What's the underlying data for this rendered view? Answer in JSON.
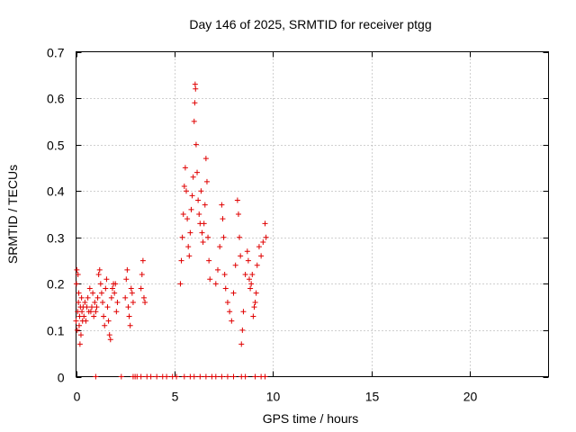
{
  "chart_data": {
    "type": "scatter",
    "title": "Day 146 of 2025, SRMTID for receiver ptgg",
    "xlabel": "GPS time / hours",
    "ylabel": "SRMTID / TECUs",
    "xlim": [
      0,
      24
    ],
    "ylim": [
      0,
      0.7
    ],
    "xticks": [
      0,
      5,
      10,
      15,
      20
    ],
    "xtick_labels": [
      "0",
      "5",
      "10",
      "15",
      "20"
    ],
    "yticks": [
      0,
      0.1,
      0.2,
      0.3,
      0.4,
      0.5,
      0.6,
      0.7
    ],
    "ytick_labels": [
      "0",
      "0.1",
      "0.2",
      "0.3",
      "0.4",
      "0.5",
      "0.6",
      "0.7"
    ],
    "grid": true,
    "marker": "+",
    "marker_color": "#e00000",
    "series": [
      {
        "name": "SRMTID",
        "points": [
          [
            0.0,
            0.12
          ],
          [
            0.02,
            0.2
          ],
          [
            0.04,
            0.23
          ],
          [
            0.06,
            0.1
          ],
          [
            0.08,
            0.14
          ],
          [
            0.1,
            0.22
          ],
          [
            0.12,
            0.16
          ],
          [
            0.14,
            0.18
          ],
          [
            0.16,
            0.11
          ],
          [
            0.18,
            0.13
          ],
          [
            0.2,
            0.07
          ],
          [
            0.22,
            0.15
          ],
          [
            0.25,
            0.09
          ],
          [
            0.28,
            0.17
          ],
          [
            0.3,
            0.14
          ],
          [
            0.33,
            0.12
          ],
          [
            0.36,
            0.15
          ],
          [
            0.4,
            0.13
          ],
          [
            0.45,
            0.16
          ],
          [
            0.5,
            0.12
          ],
          [
            0.55,
            0.15
          ],
          [
            0.6,
            0.17
          ],
          [
            0.65,
            0.14
          ],
          [
            0.7,
            0.19
          ],
          [
            0.75,
            0.14
          ],
          [
            0.8,
            0.15
          ],
          [
            0.85,
            0.18
          ],
          [
            0.9,
            0.13
          ],
          [
            0.95,
            0.16
          ],
          [
            1.0,
            0.14
          ],
          [
            1.05,
            0.15
          ],
          [
            1.1,
            0.17
          ],
          [
            1.15,
            0.22
          ],
          [
            1.2,
            0.23
          ],
          [
            1.25,
            0.2
          ],
          [
            1.3,
            0.18
          ],
          [
            1.35,
            0.16
          ],
          [
            1.4,
            0.13
          ],
          [
            1.45,
            0.11
          ],
          [
            1.5,
            0.19
          ],
          [
            1.55,
            0.21
          ],
          [
            1.6,
            0.15
          ],
          [
            1.65,
            0.12
          ],
          [
            1.7,
            0.09
          ],
          [
            1.75,
            0.08
          ],
          [
            1.8,
            0.17
          ],
          [
            1.85,
            0.19
          ],
          [
            1.9,
            0.2
          ],
          [
            1.95,
            0.18
          ],
          [
            2.0,
            0.2
          ],
          [
            2.05,
            0.14
          ],
          [
            2.1,
            0.16
          ],
          [
            2.5,
            0.17
          ],
          [
            2.55,
            0.21
          ],
          [
            2.6,
            0.23
          ],
          [
            2.65,
            0.15
          ],
          [
            2.7,
            0.13
          ],
          [
            2.75,
            0.11
          ],
          [
            2.8,
            0.19
          ],
          [
            2.85,
            0.18
          ],
          [
            2.9,
            0.16
          ],
          [
            3.3,
            0.19
          ],
          [
            3.35,
            0.22
          ],
          [
            3.4,
            0.25
          ],
          [
            3.45,
            0.17
          ],
          [
            3.5,
            0.16
          ],
          [
            5.3,
            0.2
          ],
          [
            5.35,
            0.25
          ],
          [
            5.4,
            0.3
          ],
          [
            5.45,
            0.35
          ],
          [
            5.5,
            0.41
          ],
          [
            5.55,
            0.45
          ],
          [
            5.6,
            0.4
          ],
          [
            5.65,
            0.34
          ],
          [
            5.7,
            0.28
          ],
          [
            5.75,
            0.26
          ],
          [
            5.8,
            0.31
          ],
          [
            5.85,
            0.36
          ],
          [
            5.9,
            0.39
          ],
          [
            5.95,
            0.43
          ],
          [
            6.0,
            0.55
          ],
          [
            6.03,
            0.59
          ],
          [
            6.05,
            0.63
          ],
          [
            6.07,
            0.62
          ],
          [
            6.1,
            0.5
          ],
          [
            6.15,
            0.44
          ],
          [
            6.2,
            0.38
          ],
          [
            6.25,
            0.35
          ],
          [
            6.3,
            0.33
          ],
          [
            6.35,
            0.4
          ],
          [
            6.4,
            0.31
          ],
          [
            6.45,
            0.29
          ],
          [
            6.5,
            0.33
          ],
          [
            6.55,
            0.37
          ],
          [
            6.6,
            0.47
          ],
          [
            6.65,
            0.42
          ],
          [
            6.7,
            0.3
          ],
          [
            6.75,
            0.25
          ],
          [
            6.8,
            0.21
          ],
          [
            7.1,
            0.2
          ],
          [
            7.2,
            0.23
          ],
          [
            7.3,
            0.28
          ],
          [
            7.4,
            0.37
          ],
          [
            7.45,
            0.34
          ],
          [
            7.5,
            0.3
          ],
          [
            7.55,
            0.22
          ],
          [
            7.6,
            0.19
          ],
          [
            7.7,
            0.16
          ],
          [
            7.8,
            0.14
          ],
          [
            7.9,
            0.12
          ],
          [
            8.0,
            0.18
          ],
          [
            8.1,
            0.24
          ],
          [
            8.2,
            0.38
          ],
          [
            8.25,
            0.35
          ],
          [
            8.3,
            0.3
          ],
          [
            8.35,
            0.26
          ],
          [
            8.4,
            0.07
          ],
          [
            8.45,
            0.1
          ],
          [
            8.5,
            0.14
          ],
          [
            8.6,
            0.22
          ],
          [
            8.7,
            0.27
          ],
          [
            8.75,
            0.25
          ],
          [
            8.8,
            0.21
          ],
          [
            8.85,
            0.19
          ],
          [
            8.9,
            0.2
          ],
          [
            8.95,
            0.22
          ],
          [
            9.0,
            0.13
          ],
          [
            9.05,
            0.15
          ],
          [
            9.1,
            0.16
          ],
          [
            9.15,
            0.18
          ],
          [
            9.2,
            0.24
          ],
          [
            9.3,
            0.28
          ],
          [
            9.4,
            0.26
          ],
          [
            9.5,
            0.29
          ],
          [
            9.6,
            0.33
          ],
          [
            9.65,
            0.3
          ],
          [
            1.0,
            0.0
          ],
          [
            2.3,
            0.0
          ],
          [
            2.9,
            0.0
          ],
          [
            3.0,
            0.0
          ],
          [
            3.1,
            0.0
          ],
          [
            3.3,
            0.0
          ],
          [
            3.6,
            0.0
          ],
          [
            3.8,
            0.0
          ],
          [
            4.1,
            0.0
          ],
          [
            4.4,
            0.0
          ],
          [
            4.6,
            0.0
          ],
          [
            4.9,
            0.0
          ],
          [
            5.1,
            0.0
          ],
          [
            5.5,
            0.0
          ],
          [
            5.8,
            0.0
          ],
          [
            6.0,
            0.0
          ],
          [
            6.3,
            0.0
          ],
          [
            6.6,
            0.0
          ],
          [
            6.9,
            0.0
          ],
          [
            7.1,
            0.0
          ],
          [
            7.4,
            0.0
          ],
          [
            7.7,
            0.0
          ],
          [
            8.0,
            0.0
          ],
          [
            8.4,
            0.0
          ],
          [
            8.6,
            0.0
          ],
          [
            9.1,
            0.0
          ],
          [
            9.4,
            0.0
          ],
          [
            9.6,
            0.0
          ]
        ]
      }
    ]
  }
}
